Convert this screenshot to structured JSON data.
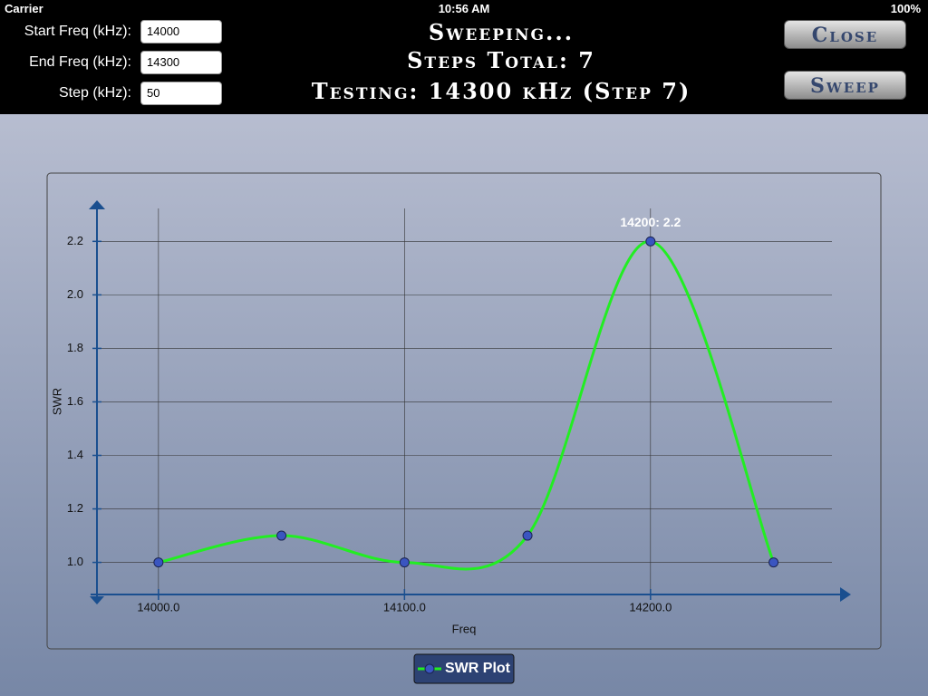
{
  "status_bar": {
    "carrier": "Carrier",
    "time": "10:56 AM",
    "battery": "100%"
  },
  "form": {
    "fields": [
      {
        "label": "Start Freq (kHz):",
        "value": "14000"
      },
      {
        "label": "End Freq (kHz):",
        "value": "14300"
      },
      {
        "label": "Step (kHz):",
        "value": "50"
      }
    ]
  },
  "status": {
    "lines": [
      "Sweeping...",
      "Steps Total: 7",
      "Testing: 14300 kHz (Step 7)"
    ]
  },
  "buttons": [
    "Close",
    "Sweep"
  ],
  "chart_data": {
    "type": "line",
    "x_label": "Freq",
    "y_label": "SWR",
    "x": [
      14000,
      14050,
      14100,
      14150,
      14200,
      14250
    ],
    "series": [
      {
        "name": "SWR Plot",
        "color": "#22ee22",
        "values": [
          1.0,
          1.1,
          1.0,
          1.1,
          2.2,
          1.0
        ]
      }
    ],
    "annotation": "14200: 2.2",
    "xlim": [
      13975,
      14280
    ],
    "ylim": [
      0.88,
      2.34
    ],
    "xticks": [
      {
        "value": 14000,
        "label": "14000.0"
      },
      {
        "value": 14100,
        "label": "14100.0"
      },
      {
        "value": 14200,
        "label": "14200.0"
      }
    ],
    "yticks": [
      {
        "value": 1,
        "label": "1.0"
      },
      {
        "value": 1.2,
        "label": "1.2"
      },
      {
        "value": 1.4,
        "label": "1.4"
      },
      {
        "value": 1.6,
        "label": "1.6"
      },
      {
        "value": 1.8,
        "label": "1.8"
      },
      {
        "value": 2,
        "label": "2.0"
      },
      {
        "value": 2.2,
        "label": "2.2"
      }
    ],
    "grid": true
  }
}
